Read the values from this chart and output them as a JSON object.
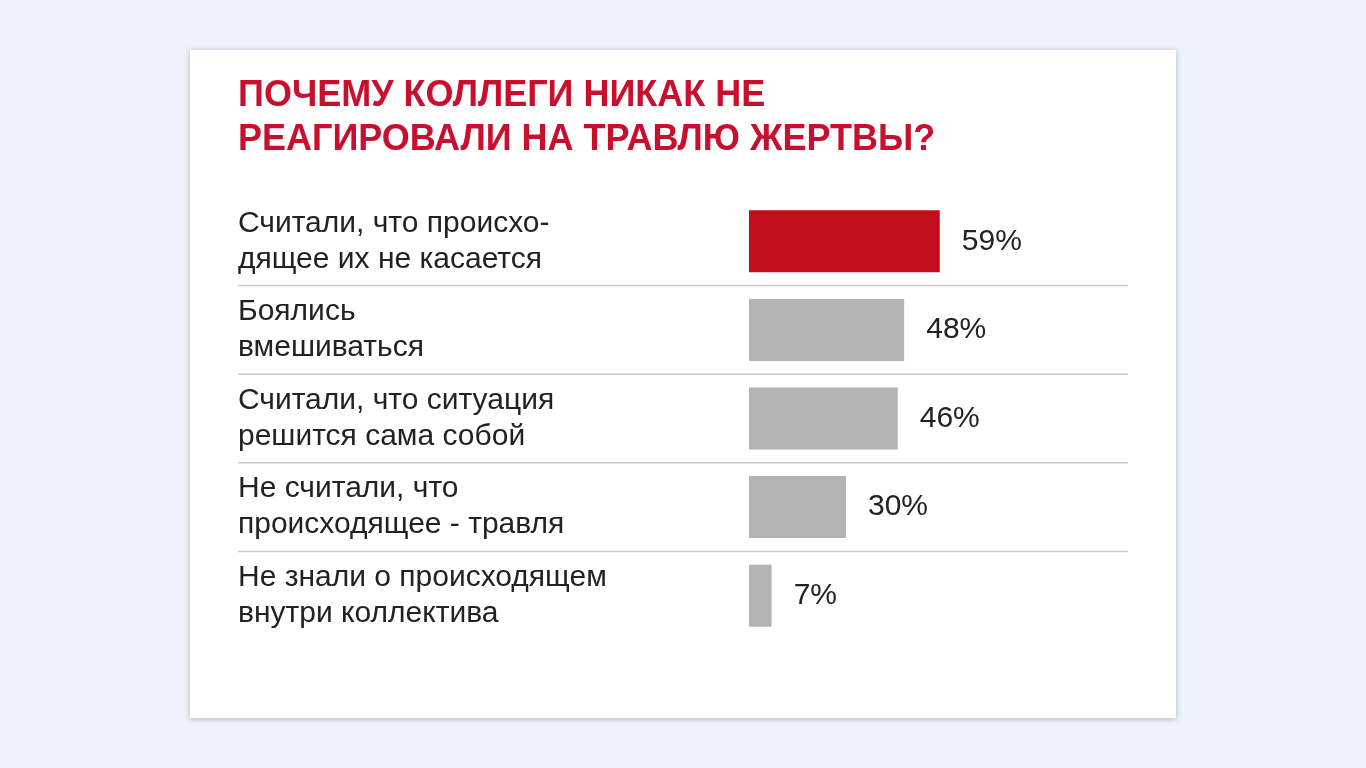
{
  "chart_data": {
    "type": "bar",
    "orientation": "horizontal",
    "title": "ПОЧЕМУ КОЛЛЕГИ НИКАК НЕ\nРЕАГИРОВАЛИ НА ТРАВЛЮ ЖЕРТВЫ?",
    "categories": [
      "Считали, что происхо-\nдящее их не касается",
      "Боялись\nвмешиваться",
      "Считали, что ситуация\nрешится сама собой",
      "Не считали, что\nпроисходящее - травля",
      "Не знали о происходящем\nвнутри коллектива"
    ],
    "values": [
      59,
      48,
      46,
      30,
      7
    ],
    "colors": [
      "#c20e1a",
      "#b3b3b3",
      "#b3b3b3",
      "#b3b3b3",
      "#b3b3b3"
    ],
    "value_labels": [
      "59%",
      "48%",
      "46%",
      "30%",
      "7%"
    ],
    "tick_labels": "y",
    "grid": "y",
    "legend": false
  }
}
